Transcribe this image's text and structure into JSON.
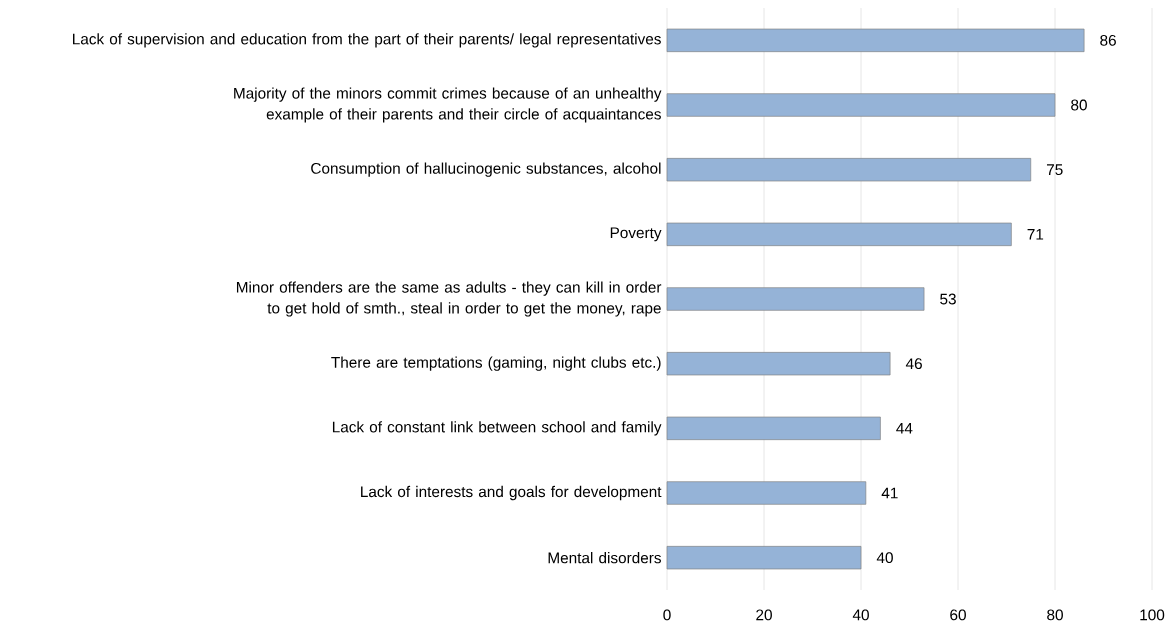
{
  "chart_data": {
    "type": "bar",
    "orientation": "horizontal",
    "categories": [
      "Lack of supervision and education from the part of their parents/ legal representatives",
      "Majority of the minors commit crimes because of an unhealthy example of their parents and their circle of acquaintances",
      "Consumption of hallucinogenic substances, alcohol",
      "Poverty",
      "Minor offenders are the same as adults - they can kill in order to get hold of smth., steal in order to get the money, rape",
      "There are temptations (gaming, night clubs etc.)",
      "Lack of constant link between school and family",
      "Lack of interests and goals for development",
      "Mental disorders"
    ],
    "values": [
      86,
      80,
      75,
      71,
      53,
      46,
      44,
      41,
      40
    ],
    "color": "#95b3d7",
    "xlim": [
      0,
      100
    ],
    "xticks": [
      0,
      20,
      40,
      60,
      80,
      100
    ],
    "grid": "x",
    "data_labels": true
  }
}
